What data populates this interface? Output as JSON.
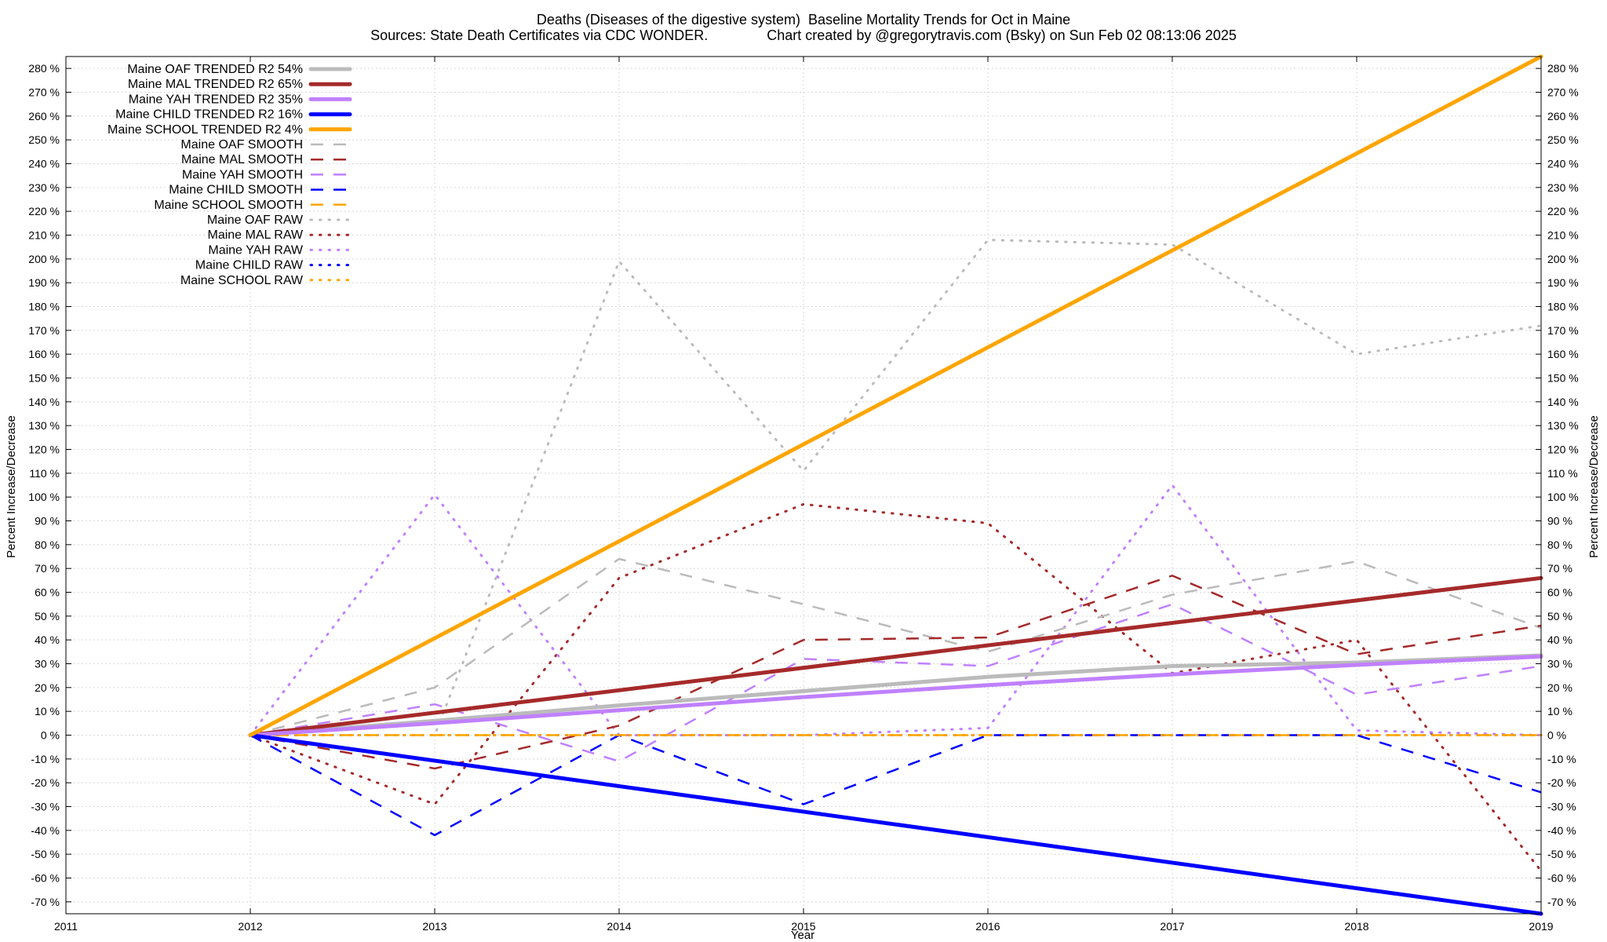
{
  "chart_data": {
    "type": "line",
    "title": "Deaths (Diseases of the digestive system)  Baseline Mortality Trends for Oct in Maine",
    "subtitle": "Sources: State Death Certificates via CDC WONDER.               Chart created by @gregorytravis.com (Bsky) on Sun Feb 02 08:13:06 2025",
    "xlabel": "Year",
    "ylabel": "Percent Increase/Decrease",
    "y2label": "Percent Increase/Decrease",
    "xlim": [
      2011,
      2019
    ],
    "ylim": [
      -75,
      285
    ],
    "x_ticks": [
      "2011",
      "2012",
      "2013",
      "2014",
      "2015",
      "2016",
      "2017",
      "2018",
      "2019"
    ],
    "y_ticks": [
      "-70 %",
      "-60 %",
      "-50 %",
      "-40 %",
      "-30 %",
      "-20 %",
      "-10 %",
      "0 %",
      "10 %",
      "20 %",
      "30 %",
      "40 %",
      "50 %",
      "60 %",
      "70 %",
      "80 %",
      "90 %",
      "100 %",
      "110 %",
      "120 %",
      "130 %",
      "140 %",
      "150 %",
      "160 %",
      "170 %",
      "180 %",
      "190 %",
      "200 %",
      "210 %",
      "220 %",
      "230 %",
      "240 %",
      "250 %",
      "260 %",
      "270 %",
      "280 %"
    ],
    "grid": true,
    "legend_position": "top-left",
    "series": [
      {
        "name": "Maine OAF TRENDED R2  54%",
        "style": "solid",
        "color": "#bbbbbb",
        "x": [
          2012,
          2013,
          2014,
          2015,
          2016,
          2017,
          2018,
          2019
        ],
        "y": [
          0,
          6,
          12.5,
          18.5,
          24.5,
          29,
          30.5,
          33.5
        ]
      },
      {
        "name": "Maine MAL TRENDED R2  65%",
        "style": "solid",
        "color": "#a52a2a",
        "x": [
          2012,
          2019
        ],
        "y": [
          0,
          66
        ]
      },
      {
        "name": "Maine YAH TRENDED R2  35%",
        "style": "solid",
        "color": "#c080ff",
        "x": [
          2012,
          2013,
          2014,
          2015,
          2016,
          2017,
          2018,
          2019
        ],
        "y": [
          0,
          5,
          10.5,
          16,
          21,
          25.5,
          29.5,
          33
        ]
      },
      {
        "name": "Maine CHILD TRENDED R2  16%",
        "style": "solid",
        "color": "#0000ff",
        "x": [
          2012,
          2019
        ],
        "y": [
          0,
          -75
        ]
      },
      {
        "name": "Maine SCHOOL TRENDED R2  4%",
        "style": "solid",
        "color": "#ffa500",
        "x": [
          2012,
          2019
        ],
        "y": [
          0,
          285
        ]
      },
      {
        "name": "Maine OAF SMOOTH",
        "style": "dashed",
        "color": "#bbbbbb",
        "x": [
          2012,
          2013,
          2014,
          2015,
          2016,
          2017,
          2018,
          2019
        ],
        "y": [
          0,
          20,
          74,
          55,
          35,
          59,
          73,
          45
        ]
      },
      {
        "name": "Maine MAL SMOOTH",
        "style": "dashed",
        "color": "#a52a2a",
        "x": [
          2012,
          2013,
          2014,
          2015,
          2016,
          2017,
          2018,
          2019
        ],
        "y": [
          0,
          -14,
          4,
          40,
          41,
          67,
          34,
          46
        ]
      },
      {
        "name": "Maine YAH SMOOTH",
        "style": "dashed",
        "color": "#c080ff",
        "x": [
          2012,
          2013,
          2014,
          2015,
          2016,
          2017,
          2018,
          2019
        ],
        "y": [
          0,
          13,
          -11,
          32,
          29,
          55,
          17,
          29
        ]
      },
      {
        "name": "Maine CHILD SMOOTH",
        "style": "dashed",
        "color": "#0000ff",
        "x": [
          2012,
          2013,
          2014,
          2015,
          2016,
          2017,
          2018,
          2019
        ],
        "y": [
          0,
          -42,
          0,
          -29,
          0,
          0,
          0,
          -24
        ]
      },
      {
        "name": "Maine SCHOOL SMOOTH",
        "style": "dashed",
        "color": "#ffa500",
        "x": [
          2012,
          2013,
          2014,
          2015,
          2016,
          2017,
          2018,
          2019
        ],
        "y": [
          0,
          0,
          0,
          0,
          0,
          0,
          0,
          0
        ]
      },
      {
        "name": "Maine OAF RAW",
        "style": "dotted",
        "color": "#bbbbbb",
        "x": [
          2012,
          2013,
          2014,
          2015,
          2016,
          2017,
          2018,
          2019
        ],
        "y": [
          0,
          0,
          199,
          111,
          208,
          206,
          160,
          172
        ]
      },
      {
        "name": "Maine MAL RAW",
        "style": "dotted",
        "color": "#a52a2a",
        "x": [
          2012,
          2013,
          2014,
          2015,
          2016,
          2017,
          2018,
          2019
        ],
        "y": [
          0,
          -29,
          66,
          97,
          89,
          26,
          40,
          -57
        ]
      },
      {
        "name": "Maine YAH RAW",
        "style": "dotted",
        "color": "#c080ff",
        "x": [
          2012,
          2013,
          2014,
          2015,
          2016,
          2017,
          2018,
          2019
        ],
        "y": [
          0,
          101,
          0,
          0,
          3,
          105,
          2,
          0
        ]
      },
      {
        "name": "Maine CHILD RAW",
        "style": "dotted",
        "color": "#0000ff",
        "x": [
          2012,
          2013,
          2014,
          2015,
          2016,
          2017,
          2018,
          2019
        ],
        "y": [
          0,
          0,
          0,
          0,
          0,
          0,
          0,
          0
        ]
      },
      {
        "name": "Maine SCHOOL RAW",
        "style": "dotted",
        "color": "#ffa500",
        "x": [
          2012,
          2013,
          2014,
          2015,
          2016,
          2017,
          2018,
          2019
        ],
        "y": [
          0,
          0,
          0,
          0,
          0,
          0,
          0,
          0
        ]
      }
    ]
  }
}
